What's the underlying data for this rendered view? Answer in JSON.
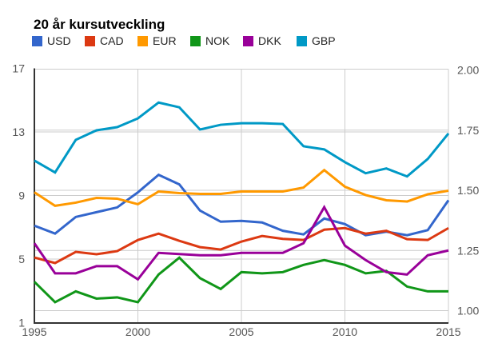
{
  "chart_data": {
    "type": "line",
    "title": "20 år kursutveckling",
    "x": [
      1995,
      1996,
      1997,
      1998,
      1999,
      2000,
      2001,
      2002,
      2003,
      2004,
      2005,
      2006,
      2007,
      2008,
      2009,
      2010,
      2011,
      2012,
      2013,
      2014,
      2015
    ],
    "x_ticks": [
      1995,
      2000,
      2005,
      2010,
      2015
    ],
    "left_axis": {
      "tick_labels": [
        "1",
        "5",
        "9",
        "13",
        "17"
      ],
      "tick_values": [
        1,
        5,
        9,
        13,
        17
      ],
      "min": 1,
      "max": 17
    },
    "right_axis": {
      "tick_labels": [
        "1.00",
        "1.25",
        "1.50",
        "1.75",
        "2.00"
      ],
      "tick_values": [
        1.0,
        1.25,
        1.5,
        1.75,
        2.0
      ],
      "min": 1.0,
      "max": 2.0
    },
    "series": [
      {
        "name": "USD",
        "color": "#3366CC",
        "axis": "left",
        "values": [
          7.1,
          6.6,
          7.65,
          7.95,
          8.25,
          9.2,
          10.3,
          9.7,
          8.05,
          7.35,
          7.4,
          7.3,
          6.78,
          6.55,
          7.55,
          7.2,
          6.5,
          6.72,
          6.5,
          6.82,
          8.7
        ]
      },
      {
        "name": "CAD",
        "color": "#DC3912",
        "axis": "left",
        "values": [
          5.1,
          4.75,
          5.45,
          5.3,
          5.5,
          6.2,
          6.6,
          6.15,
          5.75,
          5.6,
          6.1,
          6.45,
          6.27,
          6.2,
          6.85,
          6.95,
          6.6,
          6.78,
          6.25,
          6.2,
          6.95
        ]
      },
      {
        "name": "EUR",
        "color": "#FF9900",
        "axis": "left",
        "values": [
          9.2,
          8.35,
          8.55,
          8.85,
          8.8,
          8.45,
          9.25,
          9.15,
          9.1,
          9.1,
          9.25,
          9.25,
          9.25,
          9.5,
          10.6,
          9.55,
          9.03,
          8.7,
          8.62,
          9.08,
          9.3
        ]
      },
      {
        "name": "NOK",
        "color": "#109618",
        "axis": "right",
        "values": [
          1.12,
          1.035,
          1.08,
          1.05,
          1.055,
          1.035,
          1.15,
          1.22,
          1.135,
          1.09,
          1.16,
          1.155,
          1.16,
          1.19,
          1.21,
          1.19,
          1.155,
          1.165,
          1.1,
          1.08,
          1.08
        ]
      },
      {
        "name": "DKK",
        "color": "#990099",
        "axis": "right",
        "values": [
          1.28,
          1.155,
          1.155,
          1.185,
          1.185,
          1.13,
          1.24,
          1.235,
          1.23,
          1.23,
          1.24,
          1.24,
          1.24,
          1.28,
          1.43,
          1.27,
          1.21,
          1.16,
          1.15,
          1.23,
          1.25
        ]
      },
      {
        "name": "GBP",
        "color": "#0099C6",
        "axis": "left",
        "values": [
          11.2,
          10.45,
          12.5,
          13.1,
          13.3,
          13.85,
          14.85,
          14.55,
          13.15,
          13.45,
          13.55,
          13.55,
          13.5,
          12.1,
          11.9,
          11.1,
          10.4,
          10.7,
          10.2,
          11.3,
          12.9
        ]
      }
    ],
    "grid": true,
    "legend_position": "top",
    "colors": {
      "grid": "#CCCCCC",
      "axis": "#333333",
      "tick_label": "#555555",
      "background": "#FFFFFF"
    }
  }
}
